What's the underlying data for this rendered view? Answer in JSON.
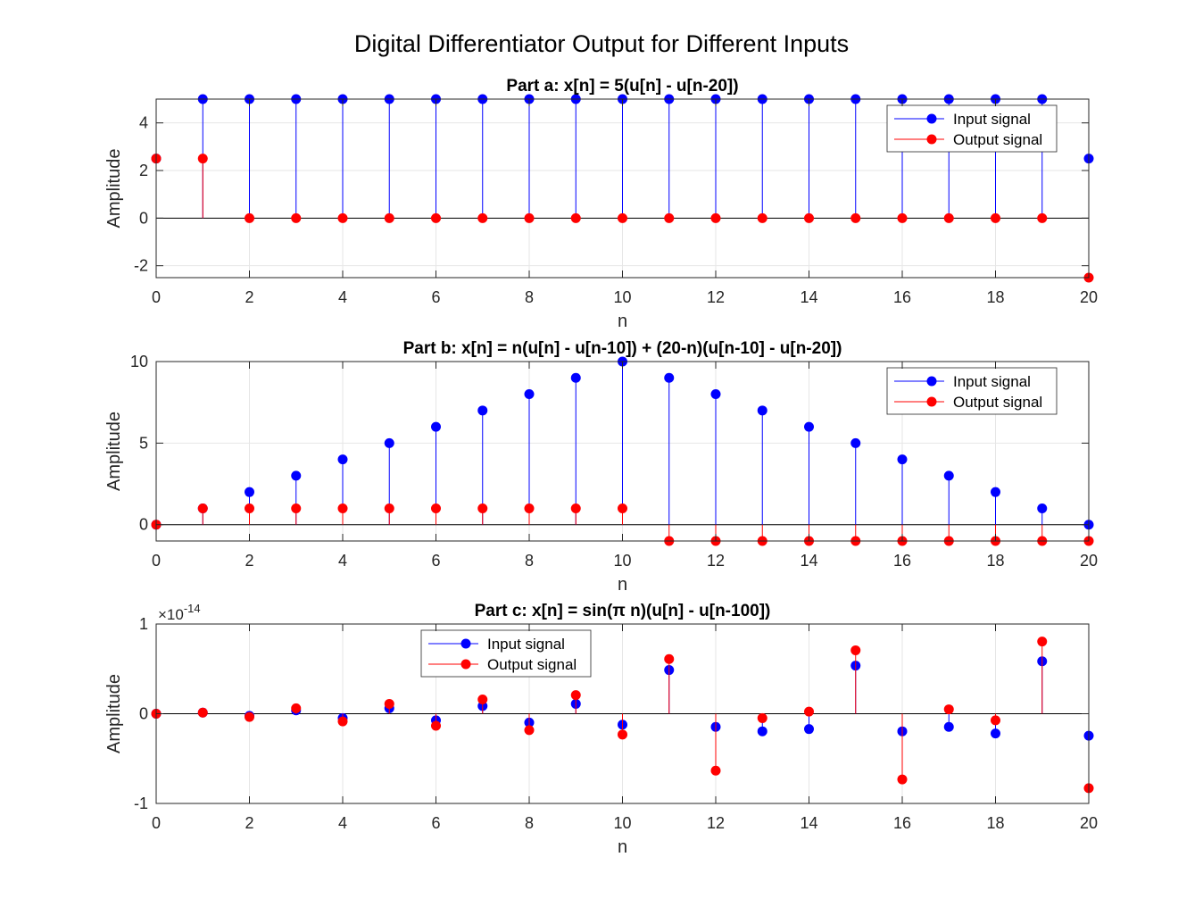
{
  "figure_title": "Digital Differentiator Output for Different Inputs",
  "colors": {
    "input": "#0000ff",
    "output": "#ff0000",
    "grid": "#e6e6e6",
    "axes": "#262626"
  },
  "chart_data": [
    {
      "type": "stem",
      "title": "Part a: x[n] = 5(u[n] - u[n-20])",
      "xlabel": "n",
      "ylabel": "Amplitude",
      "xlim": [
        0,
        20
      ],
      "ylim": [
        -2.5,
        5
      ],
      "xticks": [
        0,
        2,
        4,
        6,
        8,
        10,
        12,
        14,
        16,
        18,
        20
      ],
      "yticks": [
        -2,
        0,
        2,
        4
      ],
      "yticklabels": [
        "-2",
        "0",
        "2",
        "4"
      ],
      "exponent": "",
      "grid": true,
      "legend_position": "top-right",
      "x": [
        0,
        1,
        2,
        3,
        4,
        5,
        6,
        7,
        8,
        9,
        10,
        11,
        12,
        13,
        14,
        15,
        16,
        17,
        18,
        19,
        20
      ],
      "series": [
        {
          "name": "Input signal",
          "values": [
            2.5,
            5,
            5,
            5,
            5,
            5,
            5,
            5,
            5,
            5,
            5,
            5,
            5,
            5,
            5,
            5,
            5,
            5,
            5,
            5,
            2.5
          ]
        },
        {
          "name": "Output signal",
          "values": [
            2.5,
            2.5,
            0,
            0,
            0,
            0,
            0,
            0,
            0,
            0,
            0,
            0,
            0,
            0,
            0,
            0,
            0,
            0,
            0,
            0,
            -2.5
          ]
        }
      ]
    },
    {
      "type": "stem",
      "title": "Part b: x[n] = n(u[n] - u[n-10]) + (20-n)(u[n-10] - u[n-20])",
      "xlabel": "n",
      "ylabel": "Amplitude",
      "xlim": [
        0,
        20
      ],
      "ylim": [
        -1,
        10
      ],
      "xticks": [
        0,
        2,
        4,
        6,
        8,
        10,
        12,
        14,
        16,
        18,
        20
      ],
      "yticks": [
        0,
        5,
        10
      ],
      "yticklabels": [
        "0",
        "5",
        "10"
      ],
      "exponent": "",
      "grid": true,
      "legend_position": "top-right",
      "x": [
        0,
        1,
        2,
        3,
        4,
        5,
        6,
        7,
        8,
        9,
        10,
        11,
        12,
        13,
        14,
        15,
        16,
        17,
        18,
        19,
        20
      ],
      "series": [
        {
          "name": "Input signal",
          "values": [
            0,
            1,
            2,
            3,
            4,
            5,
            6,
            7,
            8,
            9,
            10,
            9,
            8,
            7,
            6,
            5,
            4,
            3,
            2,
            1,
            0
          ]
        },
        {
          "name": "Output signal",
          "values": [
            0,
            1,
            1,
            1,
            1,
            1,
            1,
            1,
            1,
            1,
            1,
            -1,
            -1,
            -1,
            -1,
            -1,
            -1,
            -1,
            -1,
            -1,
            -1
          ]
        }
      ]
    },
    {
      "type": "stem",
      "title": "Part c: x[n] = sin(π n)(u[n] - u[n-100])",
      "xlabel": "n",
      "ylabel": "Amplitude",
      "xlim": [
        0,
        20
      ],
      "ylim": [
        -1e-14,
        1e-14
      ],
      "xticks": [
        0,
        2,
        4,
        6,
        8,
        10,
        12,
        14,
        16,
        18,
        20
      ],
      "yticks": [
        -1e-14,
        0,
        1e-14
      ],
      "yticklabels": [
        "-1",
        "0",
        "1"
      ],
      "exponent": "-14",
      "grid": true,
      "legend_position": "top-left",
      "x": [
        0,
        1,
        2,
        3,
        4,
        5,
        6,
        7,
        8,
        9,
        10,
        11,
        12,
        13,
        14,
        15,
        16,
        17,
        18,
        19,
        20
      ],
      "series": [
        {
          "name": "Input signal",
          "values": [
            0,
            1.2e-16,
            -2.4e-16,
            3.7e-16,
            -4.9e-16,
            6.1e-16,
            -7.3e-16,
            8.6e-16,
            -9.8e-16,
            1.1e-15,
            -1.22e-15,
            4.87e-15,
            -1.47e-15,
            -1.96e-15,
            -1.71e-15,
            5.36e-15,
            -1.96e-15,
            -1.47e-15,
            -2.2e-15,
            5.85e-15,
            -2.45e-15
          ]
        },
        {
          "name": "Output signal",
          "values": [
            0,
            1.2e-16,
            -3.6e-16,
            6.1e-16,
            -8.6e-16,
            1.1e-15,
            -1.34e-15,
            1.59e-15,
            -1.83e-15,
            2.08e-15,
            -2.32e-15,
            6.09e-15,
            -6.34e-15,
            -4.9e-16,
            2.4e-16,
            7.07e-15,
            -7.32e-15,
            4.9e-16,
            -7.3e-16,
            8.05e-15,
            -8.3e-15
          ]
        }
      ]
    }
  ]
}
